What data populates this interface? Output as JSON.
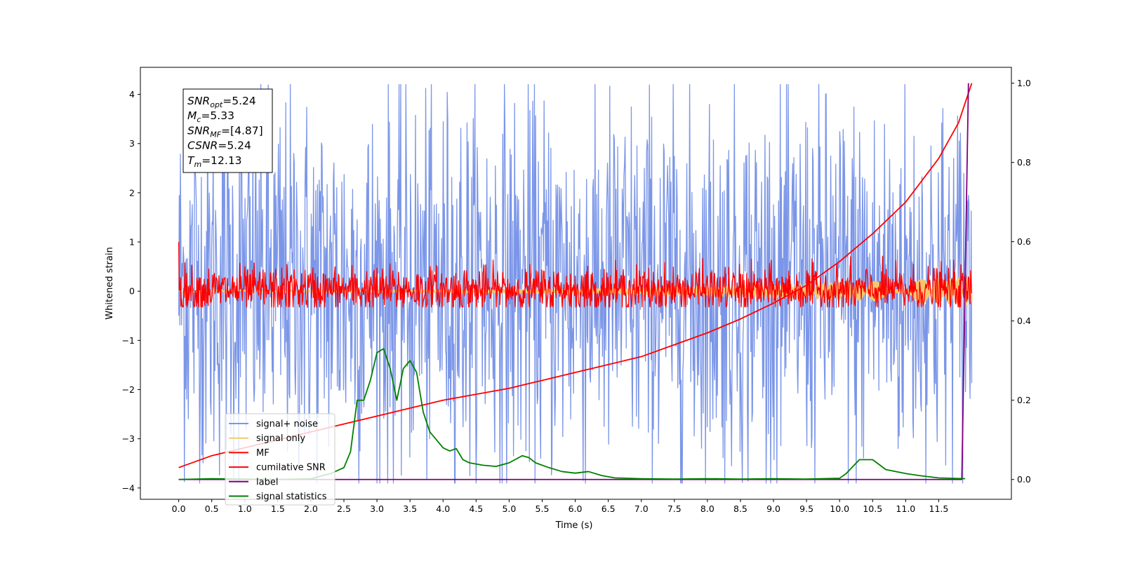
{
  "chart_data": {
    "type": "line",
    "xlabel": "Time (s)",
    "ylabel": "Whitened strain",
    "y2label": "",
    "xlim": [
      -0.58,
      12.6
    ],
    "ylim": [
      -4.23,
      4.55
    ],
    "y2lim": [
      -0.05,
      1.04
    ],
    "xticks": [
      "0.0",
      "0.5",
      "1.0",
      "1.5",
      "2.0",
      "2.5",
      "3.0",
      "3.5",
      "4.0",
      "4.5",
      "5.0",
      "5.5",
      "6.0",
      "6.5",
      "7.0",
      "7.5",
      "8.0",
      "8.5",
      "9.0",
      "9.5",
      "10.0",
      "10.5",
      "11.0",
      "11.5"
    ],
    "yticks": [
      "−4",
      "−3",
      "−2",
      "−1",
      "0",
      "1",
      "2",
      "3",
      "4"
    ],
    "y2ticks": [
      "0.0",
      "0.2",
      "0.4",
      "0.6",
      "0.8",
      "1.0"
    ],
    "grid": false,
    "legend_position": "lower-left",
    "legend": [
      {
        "label": "signal+ noise",
        "color": "#7b96e8"
      },
      {
        "label": "signal only",
        "color": "#f5c870"
      },
      {
        "label": "MF",
        "color": "#ff0000"
      },
      {
        "label": "cumilative SNR",
        "color": "#ff0000"
      },
      {
        "label": "label",
        "color": "#800080"
      },
      {
        "label": "signal statistics",
        "color": "#008000"
      }
    ],
    "annotation": {
      "lines": [
        {
          "base": "SNR",
          "sub": "opt",
          "value": "=5.24"
        },
        {
          "base": "M",
          "sub": "c",
          "value": "=5.33"
        },
        {
          "base": "SNR",
          "sub": "MF",
          "value": "=[4.87]"
        },
        {
          "base": "CSNR",
          "sub": "",
          "value": "=5.24"
        },
        {
          "base": "T",
          "sub": "m",
          "value": "=12.13"
        }
      ]
    },
    "series": [
      {
        "name": "signal+ noise",
        "axis": "left",
        "color": "#7b96e8",
        "kind": "noise",
        "x_range": [
          0.0,
          12.0
        ],
        "typical_range": [
          -2.6,
          2.8
        ],
        "peak_range": [
          -3.9,
          4.2
        ]
      },
      {
        "name": "signal only",
        "axis": "left",
        "color": "#f5c870",
        "kind": "chirp",
        "x_range": [
          0.0,
          12.0
        ],
        "amplitude_start": 0.02,
        "amplitude_end": 0.28
      },
      {
        "name": "MF",
        "axis": "left",
        "color": "#ff0000",
        "kind": "noise",
        "x_range": [
          0.0,
          12.0
        ],
        "typical_range": [
          -0.3,
          0.35
        ],
        "peak_range": [
          -0.32,
          0.85
        ],
        "start_value": 1.0
      },
      {
        "name": "cumilative SNR",
        "axis": "right",
        "color": "#ff0000",
        "x": [
          0.0,
          0.5,
          1.0,
          1.5,
          2.0,
          2.5,
          3.0,
          3.5,
          4.0,
          4.5,
          5.0,
          5.5,
          6.0,
          6.5,
          7.0,
          7.5,
          8.0,
          8.5,
          9.0,
          9.5,
          10.0,
          10.5,
          11.0,
          11.5,
          11.8,
          12.0
        ],
        "values": [
          0.03,
          0.06,
          0.08,
          0.1,
          0.12,
          0.14,
          0.16,
          0.18,
          0.2,
          0.215,
          0.23,
          0.25,
          0.27,
          0.29,
          0.31,
          0.34,
          0.37,
          0.405,
          0.445,
          0.49,
          0.55,
          0.62,
          0.7,
          0.81,
          0.9,
          1.0
        ]
      },
      {
        "name": "label",
        "axis": "right",
        "color": "#800080",
        "x": [
          0.0,
          11.85,
          11.95
        ],
        "values": [
          0.0,
          0.0,
          1.0
        ]
      },
      {
        "name": "signal statistics",
        "axis": "right",
        "color": "#008000",
        "x": [
          0.0,
          0.5,
          1.0,
          1.5,
          2.0,
          2.3,
          2.5,
          2.6,
          2.7,
          2.8,
          2.9,
          3.0,
          3.1,
          3.2,
          3.3,
          3.4,
          3.5,
          3.6,
          3.7,
          3.8,
          3.9,
          4.0,
          4.1,
          4.2,
          4.3,
          4.4,
          4.6,
          4.8,
          5.0,
          5.2,
          5.3,
          5.4,
          5.6,
          5.8,
          6.0,
          6.2,
          6.4,
          6.6,
          7.0,
          7.5,
          8.0,
          8.5,
          9.0,
          9.5,
          10.0,
          10.1,
          10.3,
          10.5,
          10.7,
          11.0,
          11.2,
          11.5,
          11.9
        ],
        "values": [
          0.0,
          0.002,
          0.001,
          0.0,
          0.002,
          0.015,
          0.03,
          0.07,
          0.2,
          0.2,
          0.25,
          0.32,
          0.33,
          0.28,
          0.2,
          0.28,
          0.3,
          0.27,
          0.17,
          0.12,
          0.1,
          0.08,
          0.072,
          0.078,
          0.05,
          0.042,
          0.036,
          0.033,
          0.042,
          0.06,
          0.055,
          0.042,
          0.03,
          0.02,
          0.016,
          0.02,
          0.01,
          0.004,
          0.002,
          0.001,
          0.002,
          0.001,
          0.002,
          0.001,
          0.003,
          0.015,
          0.05,
          0.05,
          0.025,
          0.015,
          0.01,
          0.004,
          0.002
        ]
      }
    ]
  }
}
